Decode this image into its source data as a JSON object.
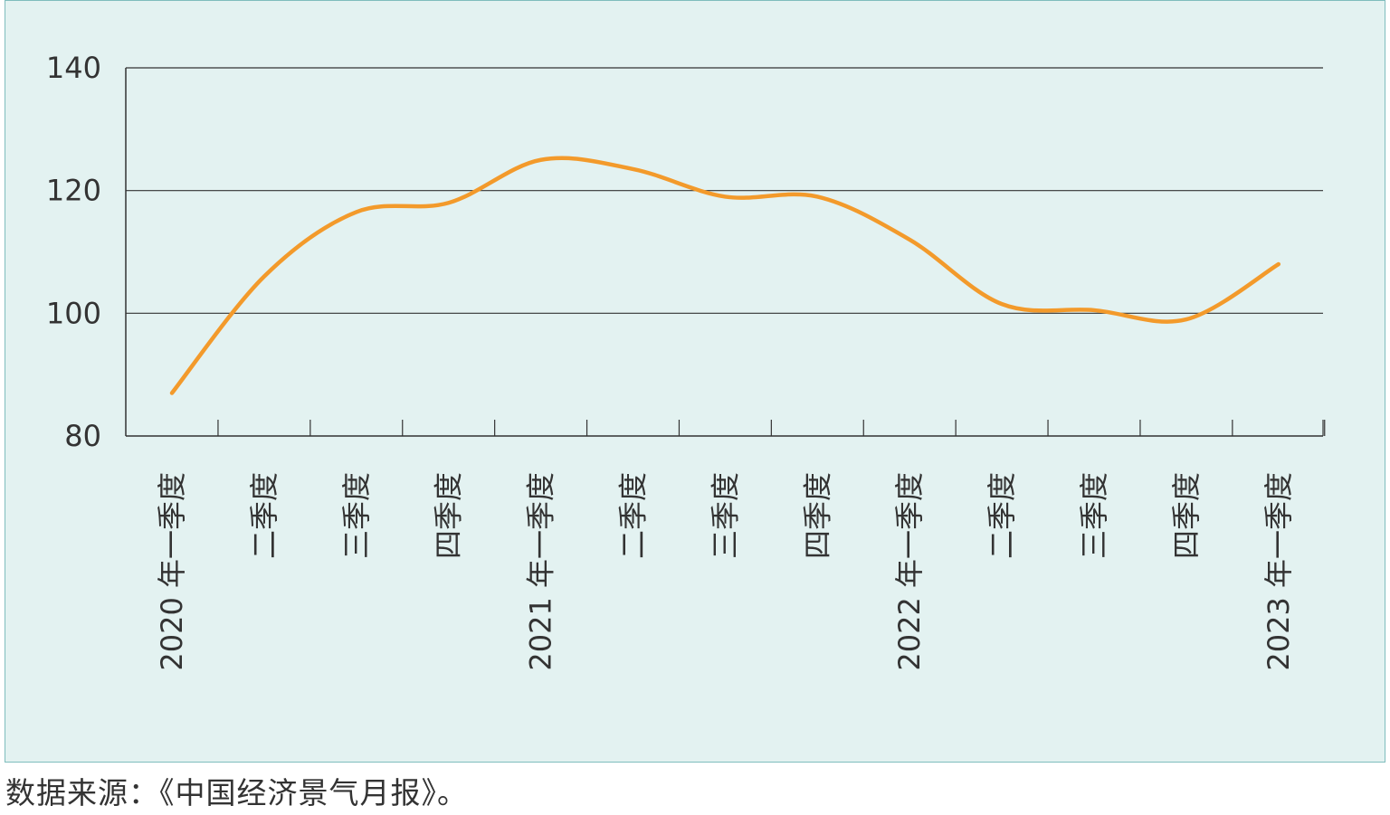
{
  "source_note": "数据来源：《中国经济景气月报》。",
  "colors": {
    "background": "#e3f2f1",
    "border": "#7fbdbd",
    "line": "#f39a2b",
    "grid": "#333333"
  },
  "chart_data": {
    "type": "line",
    "title": "",
    "xlabel": "",
    "ylabel": "",
    "ylim": [
      80,
      140
    ],
    "yticks": [
      "80",
      "100",
      "120",
      "140"
    ],
    "grid": "horizontal",
    "categories": [
      "2020 年一季度",
      "二季度",
      "三季度",
      "四季度",
      "2021 年一季度",
      "二季度",
      "三季度",
      "四季度",
      "2022 年一季度",
      "二季度",
      "三季度",
      "四季度",
      "2023 年一季度"
    ],
    "series": [
      {
        "values": [
          87,
          106,
          116.5,
          118,
          125,
          123.5,
          119,
          119,
          112,
          101.5,
          100.5,
          99,
          108
        ]
      }
    ]
  }
}
